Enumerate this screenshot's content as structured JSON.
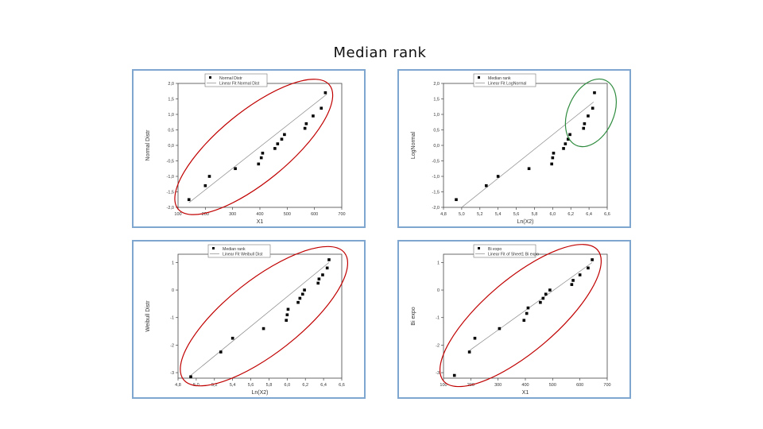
{
  "title": "Median rank",
  "chart_data": [
    {
      "type": "scatter",
      "xlabel": "X1",
      "ylabel": "Normal Distr",
      "xlim": [
        100,
        700
      ],
      "ylim": [
        -2.0,
        2.0
      ],
      "xticks": [
        "100",
        "200",
        "300",
        "400",
        "500",
        "600",
        "700"
      ],
      "yticks": [
        "2,0",
        "1,5",
        "1,0",
        "0,5",
        "0,0",
        "-0,5",
        "-1,0",
        "-1,5",
        "-2,0"
      ],
      "legend": [
        "Normal Distr",
        "Linear Fit Normal Dist"
      ],
      "legend_position": "top-left",
      "points": [
        {
          "x": 140,
          "y": -1.75
        },
        {
          "x": 200,
          "y": -1.3
        },
        {
          "x": 215,
          "y": -1.0
        },
        {
          "x": 310,
          "y": -0.75
        },
        {
          "x": 395,
          "y": -0.6
        },
        {
          "x": 405,
          "y": -0.4
        },
        {
          "x": 410,
          "y": -0.25
        },
        {
          "x": 455,
          "y": -0.1
        },
        {
          "x": 465,
          "y": 0.05
        },
        {
          "x": 480,
          "y": 0.2
        },
        {
          "x": 490,
          "y": 0.35
        },
        {
          "x": 565,
          "y": 0.55
        },
        {
          "x": 570,
          "y": 0.7
        },
        {
          "x": 595,
          "y": 0.95
        },
        {
          "x": 625,
          "y": 1.2
        },
        {
          "x": 640,
          "y": 1.7
        }
      ],
      "fit_line": {
        "x": [
          140,
          645
        ],
        "y": [
          -1.85,
          1.65
        ]
      },
      "ellipse": {
        "color": "#c00000",
        "x": [
          100,
          655
        ],
        "y": [
          -2.05,
          1.95
        ]
      }
    },
    {
      "type": "scatter",
      "xlabel": "Ln(X2)",
      "ylabel": "LogNormal",
      "xlim": [
        4.8,
        6.6
      ],
      "ylim": [
        -2.0,
        2.0
      ],
      "xticks": [
        "4,8",
        "5,0",
        "5,2",
        "5,4",
        "5,6",
        "5,8",
        "6,0",
        "6,2",
        "6,4",
        "6,6"
      ],
      "yticks": [
        "2,0",
        "1,5",
        "1,0",
        "0,5",
        "0,0",
        "-0,5",
        "-1,0",
        "-1,5",
        "-2,0"
      ],
      "legend": [
        "Median rank",
        "Linear Fit LogNormal"
      ],
      "legend_position": "top-center",
      "points": [
        {
          "x": 4.94,
          "y": -1.75
        },
        {
          "x": 5.27,
          "y": -1.3
        },
        {
          "x": 5.4,
          "y": -1.0
        },
        {
          "x": 5.74,
          "y": -0.75
        },
        {
          "x": 5.99,
          "y": -0.6
        },
        {
          "x": 6.0,
          "y": -0.4
        },
        {
          "x": 6.01,
          "y": -0.25
        },
        {
          "x": 6.12,
          "y": -0.1
        },
        {
          "x": 6.14,
          "y": 0.05
        },
        {
          "x": 6.17,
          "y": 0.2
        },
        {
          "x": 6.19,
          "y": 0.35
        },
        {
          "x": 6.34,
          "y": 0.55
        },
        {
          "x": 6.35,
          "y": 0.7
        },
        {
          "x": 6.39,
          "y": 0.95
        },
        {
          "x": 6.44,
          "y": 1.2
        },
        {
          "x": 6.46,
          "y": 1.7
        }
      ],
      "fit_line": {
        "x": [
          5.0,
          6.45
        ],
        "y": [
          -2.0,
          1.4
        ]
      },
      "ellipse": {
        "color": "#2e8b3e",
        "x": [
          6.26,
          6.58
        ],
        "y": [
          0.0,
          2.1
        ]
      }
    },
    {
      "type": "scatter",
      "xlabel": "Ln(X2)",
      "ylabel": "Weibull Distr",
      "xlim": [
        4.8,
        6.6
      ],
      "ylim": [
        -3.2,
        1.3
      ],
      "xticks": [
        "4,8",
        "5,0",
        "5,2",
        "5,4",
        "5,6",
        "5,8",
        "6,0",
        "6,2",
        "6,4",
        "6,6"
      ],
      "yticks": [
        "1",
        "0",
        "-1",
        "-2",
        "-3"
      ],
      "legend": [
        "Median rank",
        "Linear Fit Weibull Dist"
      ],
      "legend_position": "top-center",
      "points": [
        {
          "x": 4.94,
          "y": -3.15
        },
        {
          "x": 5.27,
          "y": -2.25
        },
        {
          "x": 5.4,
          "y": -1.75
        },
        {
          "x": 5.74,
          "y": -1.4
        },
        {
          "x": 5.99,
          "y": -1.1
        },
        {
          "x": 6.0,
          "y": -0.9
        },
        {
          "x": 6.01,
          "y": -0.7
        },
        {
          "x": 6.12,
          "y": -0.45
        },
        {
          "x": 6.14,
          "y": -0.3
        },
        {
          "x": 6.17,
          "y": -0.15
        },
        {
          "x": 6.19,
          "y": 0.0
        },
        {
          "x": 6.34,
          "y": 0.25
        },
        {
          "x": 6.35,
          "y": 0.4
        },
        {
          "x": 6.39,
          "y": 0.55
        },
        {
          "x": 6.44,
          "y": 0.8
        },
        {
          "x": 6.46,
          "y": 1.1
        }
      ],
      "fit_line": {
        "x": [
          4.94,
          6.46
        ],
        "y": [
          -3.1,
          1.0
        ]
      },
      "ellipse": {
        "color": "#c00000",
        "x": [
          4.86,
          6.63
        ],
        "y": [
          -3.25,
          1.35
        ]
      }
    },
    {
      "type": "scatter",
      "xlabel": "X1",
      "ylabel": "Bi expo",
      "xlim": [
        100,
        700
      ],
      "ylim": [
        -3.2,
        1.3
      ],
      "xticks": [
        "100",
        "200",
        "300",
        "400",
        "500",
        "600",
        "700"
      ],
      "yticks": [
        "1",
        "0",
        "-1",
        "-2",
        "-3"
      ],
      "legend": [
        "Bi expo",
        "Linear Fit of Sheet1 Bi expo"
      ],
      "legend_position": "top-center",
      "points": [
        {
          "x": 140,
          "y": -3.1
        },
        {
          "x": 195,
          "y": -2.25
        },
        {
          "x": 215,
          "y": -1.75
        },
        {
          "x": 305,
          "y": -1.4
        },
        {
          "x": 395,
          "y": -1.1
        },
        {
          "x": 405,
          "y": -0.85
        },
        {
          "x": 410,
          "y": -0.65
        },
        {
          "x": 455,
          "y": -0.45
        },
        {
          "x": 465,
          "y": -0.3
        },
        {
          "x": 475,
          "y": -0.15
        },
        {
          "x": 490,
          "y": 0.0
        },
        {
          "x": 570,
          "y": 0.2
        },
        {
          "x": 575,
          "y": 0.35
        },
        {
          "x": 600,
          "y": 0.55
        },
        {
          "x": 630,
          "y": 0.8
        },
        {
          "x": 645,
          "y": 1.1
        }
      ],
      "fit_line": {
        "x": [
          195,
          645
        ],
        "y": [
          -2.2,
          1.0
        ]
      },
      "ellipse": {
        "color": "#c00000",
        "x": [
          100,
          665
        ],
        "y": [
          -3.3,
          1.45
        ]
      }
    }
  ]
}
